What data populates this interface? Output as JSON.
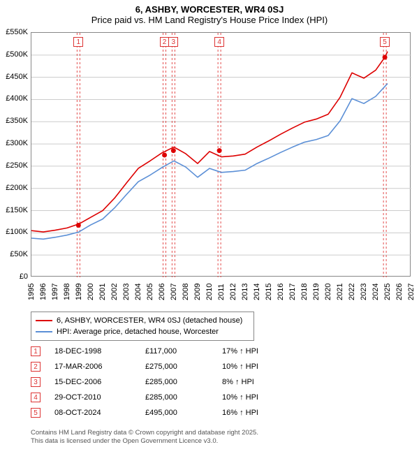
{
  "title": {
    "line1": "6, ASHBY, WORCESTER, WR4 0SJ",
    "line2": "Price paid vs. HM Land Registry's House Price Index (HPI)"
  },
  "chart": {
    "type": "line",
    "background_color": "#ffffff",
    "grid_color": "#cccccc",
    "border_color": "#888888",
    "x_range": [
      1995,
      2027
    ],
    "y_range": [
      0,
      550
    ],
    "y_unit": "K",
    "y_prefix": "£",
    "y_ticks": [
      0,
      50,
      100,
      150,
      200,
      250,
      300,
      350,
      400,
      450,
      500,
      550
    ],
    "x_ticks": [
      1995,
      1996,
      1997,
      1998,
      1999,
      2000,
      2001,
      2002,
      2003,
      2004,
      2005,
      2006,
      2007,
      2008,
      2009,
      2010,
      2011,
      2012,
      2013,
      2014,
      2015,
      2016,
      2017,
      2018,
      2019,
      2020,
      2021,
      2022,
      2023,
      2024,
      2025,
      2026,
      2027
    ],
    "series": [
      {
        "name": "6, ASHBY, WORCESTER, WR4 0SJ (detached house)",
        "color": "#dd0000",
        "line_width": 1.6,
        "points": [
          [
            1995,
            105
          ],
          [
            1996,
            102
          ],
          [
            1997,
            106
          ],
          [
            1998,
            111
          ],
          [
            1999,
            120
          ],
          [
            2000,
            135
          ],
          [
            2001,
            150
          ],
          [
            2002,
            178
          ],
          [
            2003,
            212
          ],
          [
            2004,
            245
          ],
          [
            2005,
            262
          ],
          [
            2006,
            280
          ],
          [
            2007,
            293
          ],
          [
            2008,
            278
          ],
          [
            2009,
            256
          ],
          [
            2010,
            283
          ],
          [
            2011,
            271
          ],
          [
            2012,
            273
          ],
          [
            2013,
            277
          ],
          [
            2014,
            293
          ],
          [
            2015,
            307
          ],
          [
            2016,
            322
          ],
          [
            2017,
            336
          ],
          [
            2018,
            349
          ],
          [
            2019,
            356
          ],
          [
            2020,
            367
          ],
          [
            2021,
            405
          ],
          [
            2022,
            460
          ],
          [
            2023,
            448
          ],
          [
            2024,
            466
          ],
          [
            2024.77,
            495
          ],
          [
            2025,
            508
          ]
        ]
      },
      {
        "name": "HPI: Average price, detached house, Worcester",
        "color": "#5b8fd6",
        "line_width": 1.6,
        "points": [
          [
            1995,
            88
          ],
          [
            1996,
            86
          ],
          [
            1997,
            90
          ],
          [
            1998,
            95
          ],
          [
            1999,
            102
          ],
          [
            2000,
            118
          ],
          [
            2001,
            131
          ],
          [
            2002,
            156
          ],
          [
            2003,
            186
          ],
          [
            2004,
            215
          ],
          [
            2005,
            230
          ],
          [
            2006,
            247
          ],
          [
            2007,
            262
          ],
          [
            2008,
            248
          ],
          [
            2009,
            225
          ],
          [
            2010,
            245
          ],
          [
            2011,
            236
          ],
          [
            2012,
            238
          ],
          [
            2013,
            241
          ],
          [
            2014,
            256
          ],
          [
            2015,
            268
          ],
          [
            2016,
            281
          ],
          [
            2017,
            293
          ],
          [
            2018,
            304
          ],
          [
            2019,
            310
          ],
          [
            2020,
            319
          ],
          [
            2021,
            352
          ],
          [
            2022,
            402
          ],
          [
            2023,
            391
          ],
          [
            2024,
            407
          ],
          [
            2025,
            436
          ]
        ]
      }
    ],
    "markers": [
      {
        "n": "1",
        "year": 1998.96,
        "value": 117
      },
      {
        "n": "2",
        "year": 2006.21,
        "value": 275
      },
      {
        "n": "3",
        "year": 2006.96,
        "value": 285
      },
      {
        "n": "4",
        "year": 2010.83,
        "value": 285
      },
      {
        "n": "5",
        "year": 2024.77,
        "value": 495
      }
    ],
    "marker_color": "#dd2222",
    "tick_fontsize": 11,
    "title_fontsize": 13
  },
  "legend": {
    "items": [
      {
        "color": "#dd0000",
        "label": "6, ASHBY, WORCESTER, WR4 0SJ (detached house)"
      },
      {
        "color": "#5b8fd6",
        "label": "HPI: Average price, detached house, Worcester"
      }
    ]
  },
  "sales": [
    {
      "n": "1",
      "date": "18-DEC-1998",
      "price": "£117,000",
      "pct": "17% ↑ HPI"
    },
    {
      "n": "2",
      "date": "17-MAR-2006",
      "price": "£275,000",
      "pct": "10% ↑ HPI"
    },
    {
      "n": "3",
      "date": "15-DEC-2006",
      "price": "£285,000",
      "pct": "8% ↑ HPI"
    },
    {
      "n": "4",
      "date": "29-OCT-2010",
      "price": "£285,000",
      "pct": "10% ↑ HPI"
    },
    {
      "n": "5",
      "date": "08-OCT-2024",
      "price": "£495,000",
      "pct": "16% ↑ HPI"
    }
  ],
  "footer": {
    "line1": "Contains HM Land Registry data © Crown copyright and database right 2025.",
    "line2": "This data is licensed under the Open Government Licence v3.0."
  }
}
